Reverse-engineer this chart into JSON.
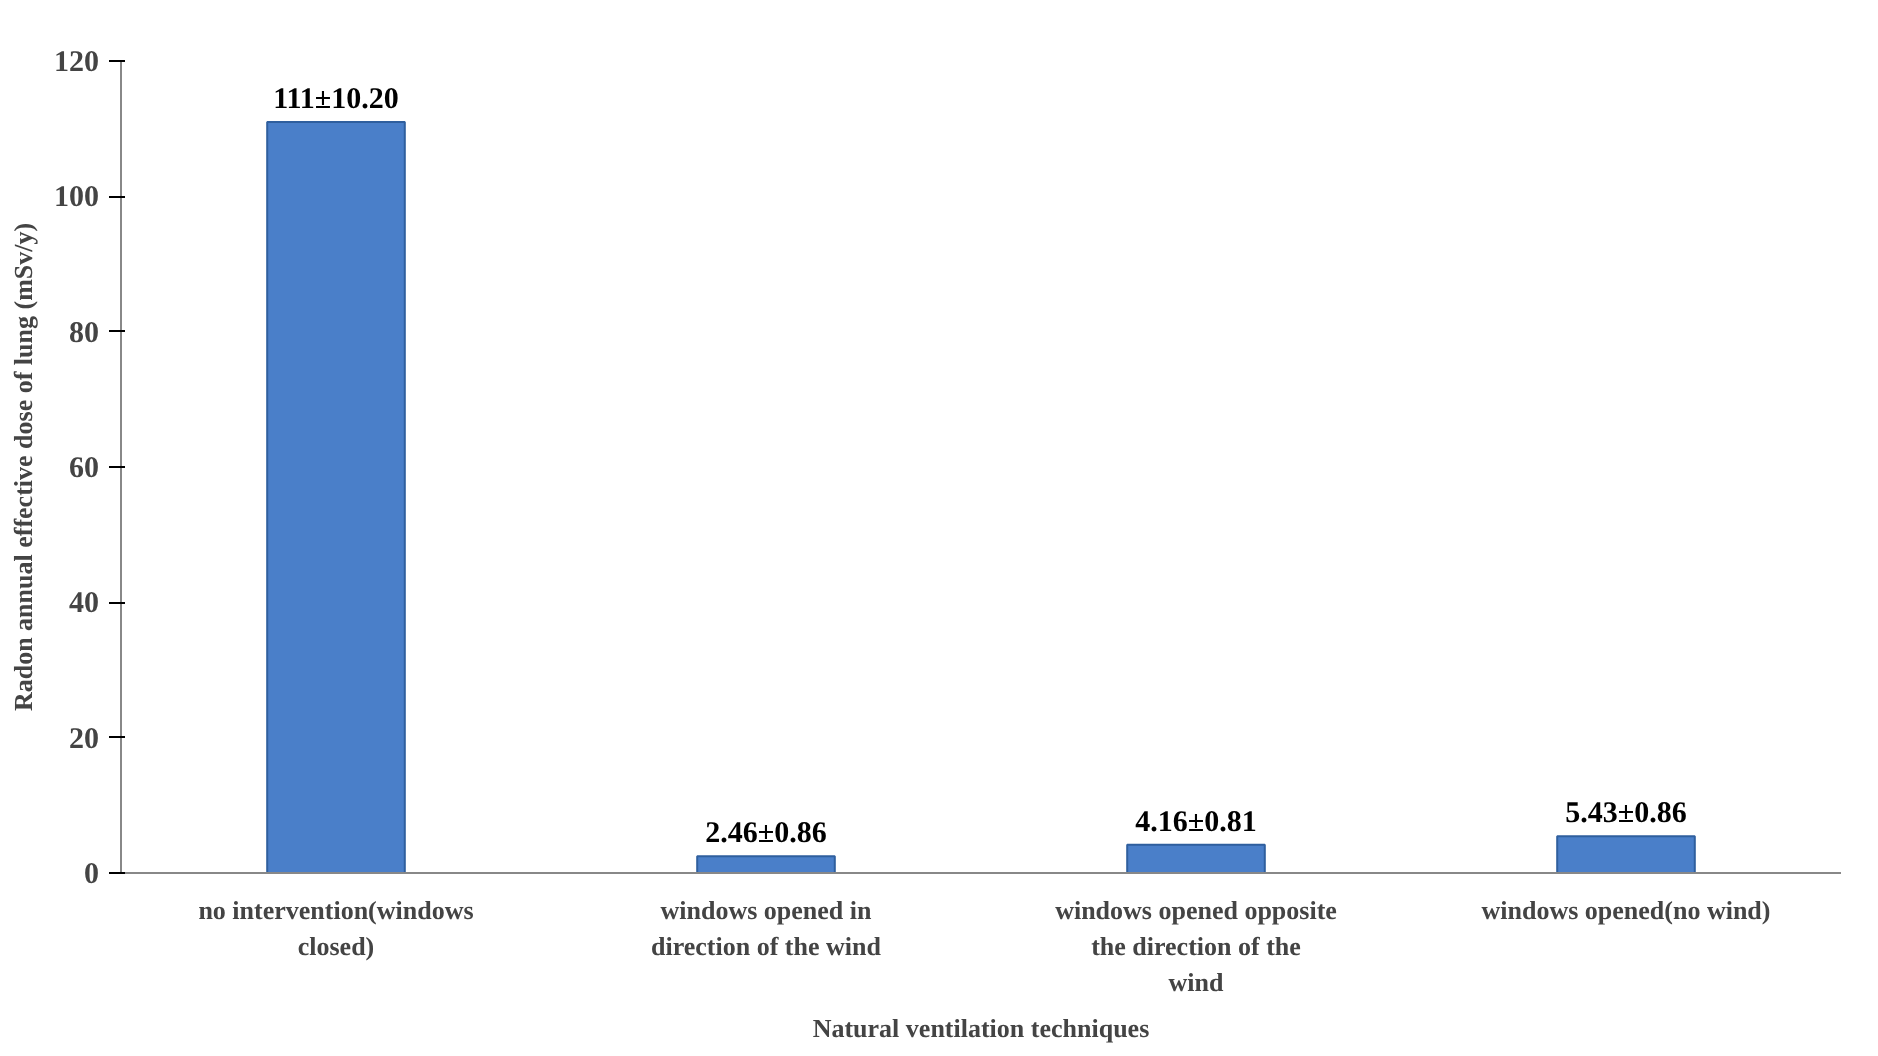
{
  "chart_data": {
    "type": "bar",
    "xlabel": "Natural ventilation techniques",
    "ylabel": "Radon annual effective dose of lung (mSv/y)",
    "categories": [
      "no intervention(windows closed)",
      "windows opened in direction of the wind",
      "windows opened opposite the direction of the wind",
      "windows opened(no wind)"
    ],
    "values": [
      111,
      2.46,
      4.16,
      5.43
    ],
    "value_labels": [
      "111±10.20",
      "2.46±0.86",
      "4.16±0.81",
      "5.43±0.86"
    ],
    "color": "#4a7fc9",
    "ylim": [
      0,
      120
    ],
    "yticks": [
      0,
      20,
      40,
      60,
      80,
      100,
      120
    ],
    "grid": false
  }
}
